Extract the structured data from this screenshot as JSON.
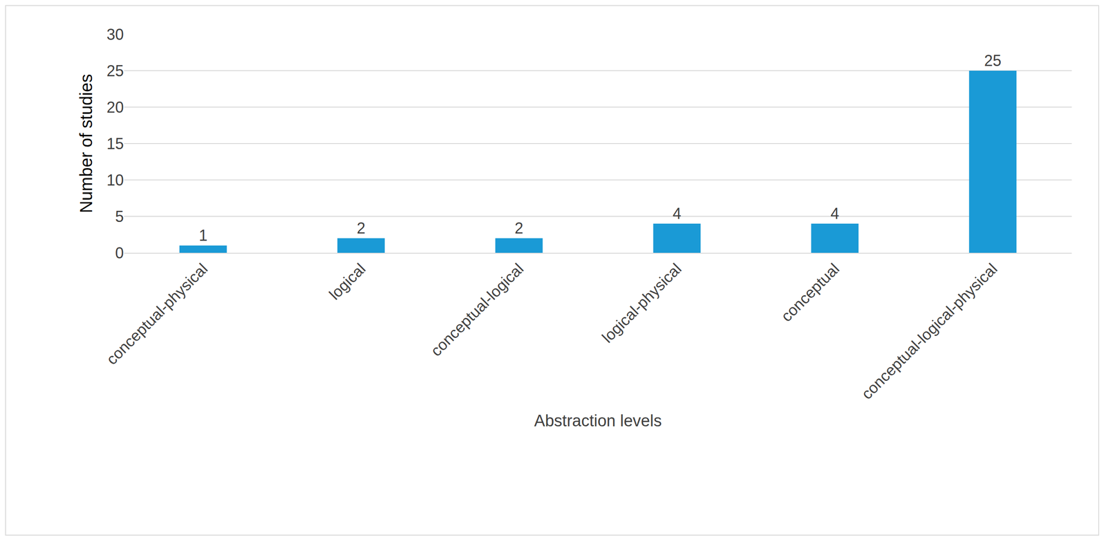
{
  "chart_data": {
    "type": "bar",
    "categories": [
      "conceptual-physical",
      "logical",
      "conceptual-logical",
      "logical-physical",
      "conceptual",
      "conceptual-logical-physical"
    ],
    "values": [
      1,
      2,
      2,
      4,
      4,
      25
    ],
    "color": "#1a9ad6",
    "x_label": "Abstraction levels",
    "y_label": "Number of studies",
    "ylim": [
      0,
      30
    ],
    "yticks": [
      0,
      5,
      10,
      15,
      20,
      25,
      30
    ],
    "grid": true,
    "data_labels": true
  }
}
